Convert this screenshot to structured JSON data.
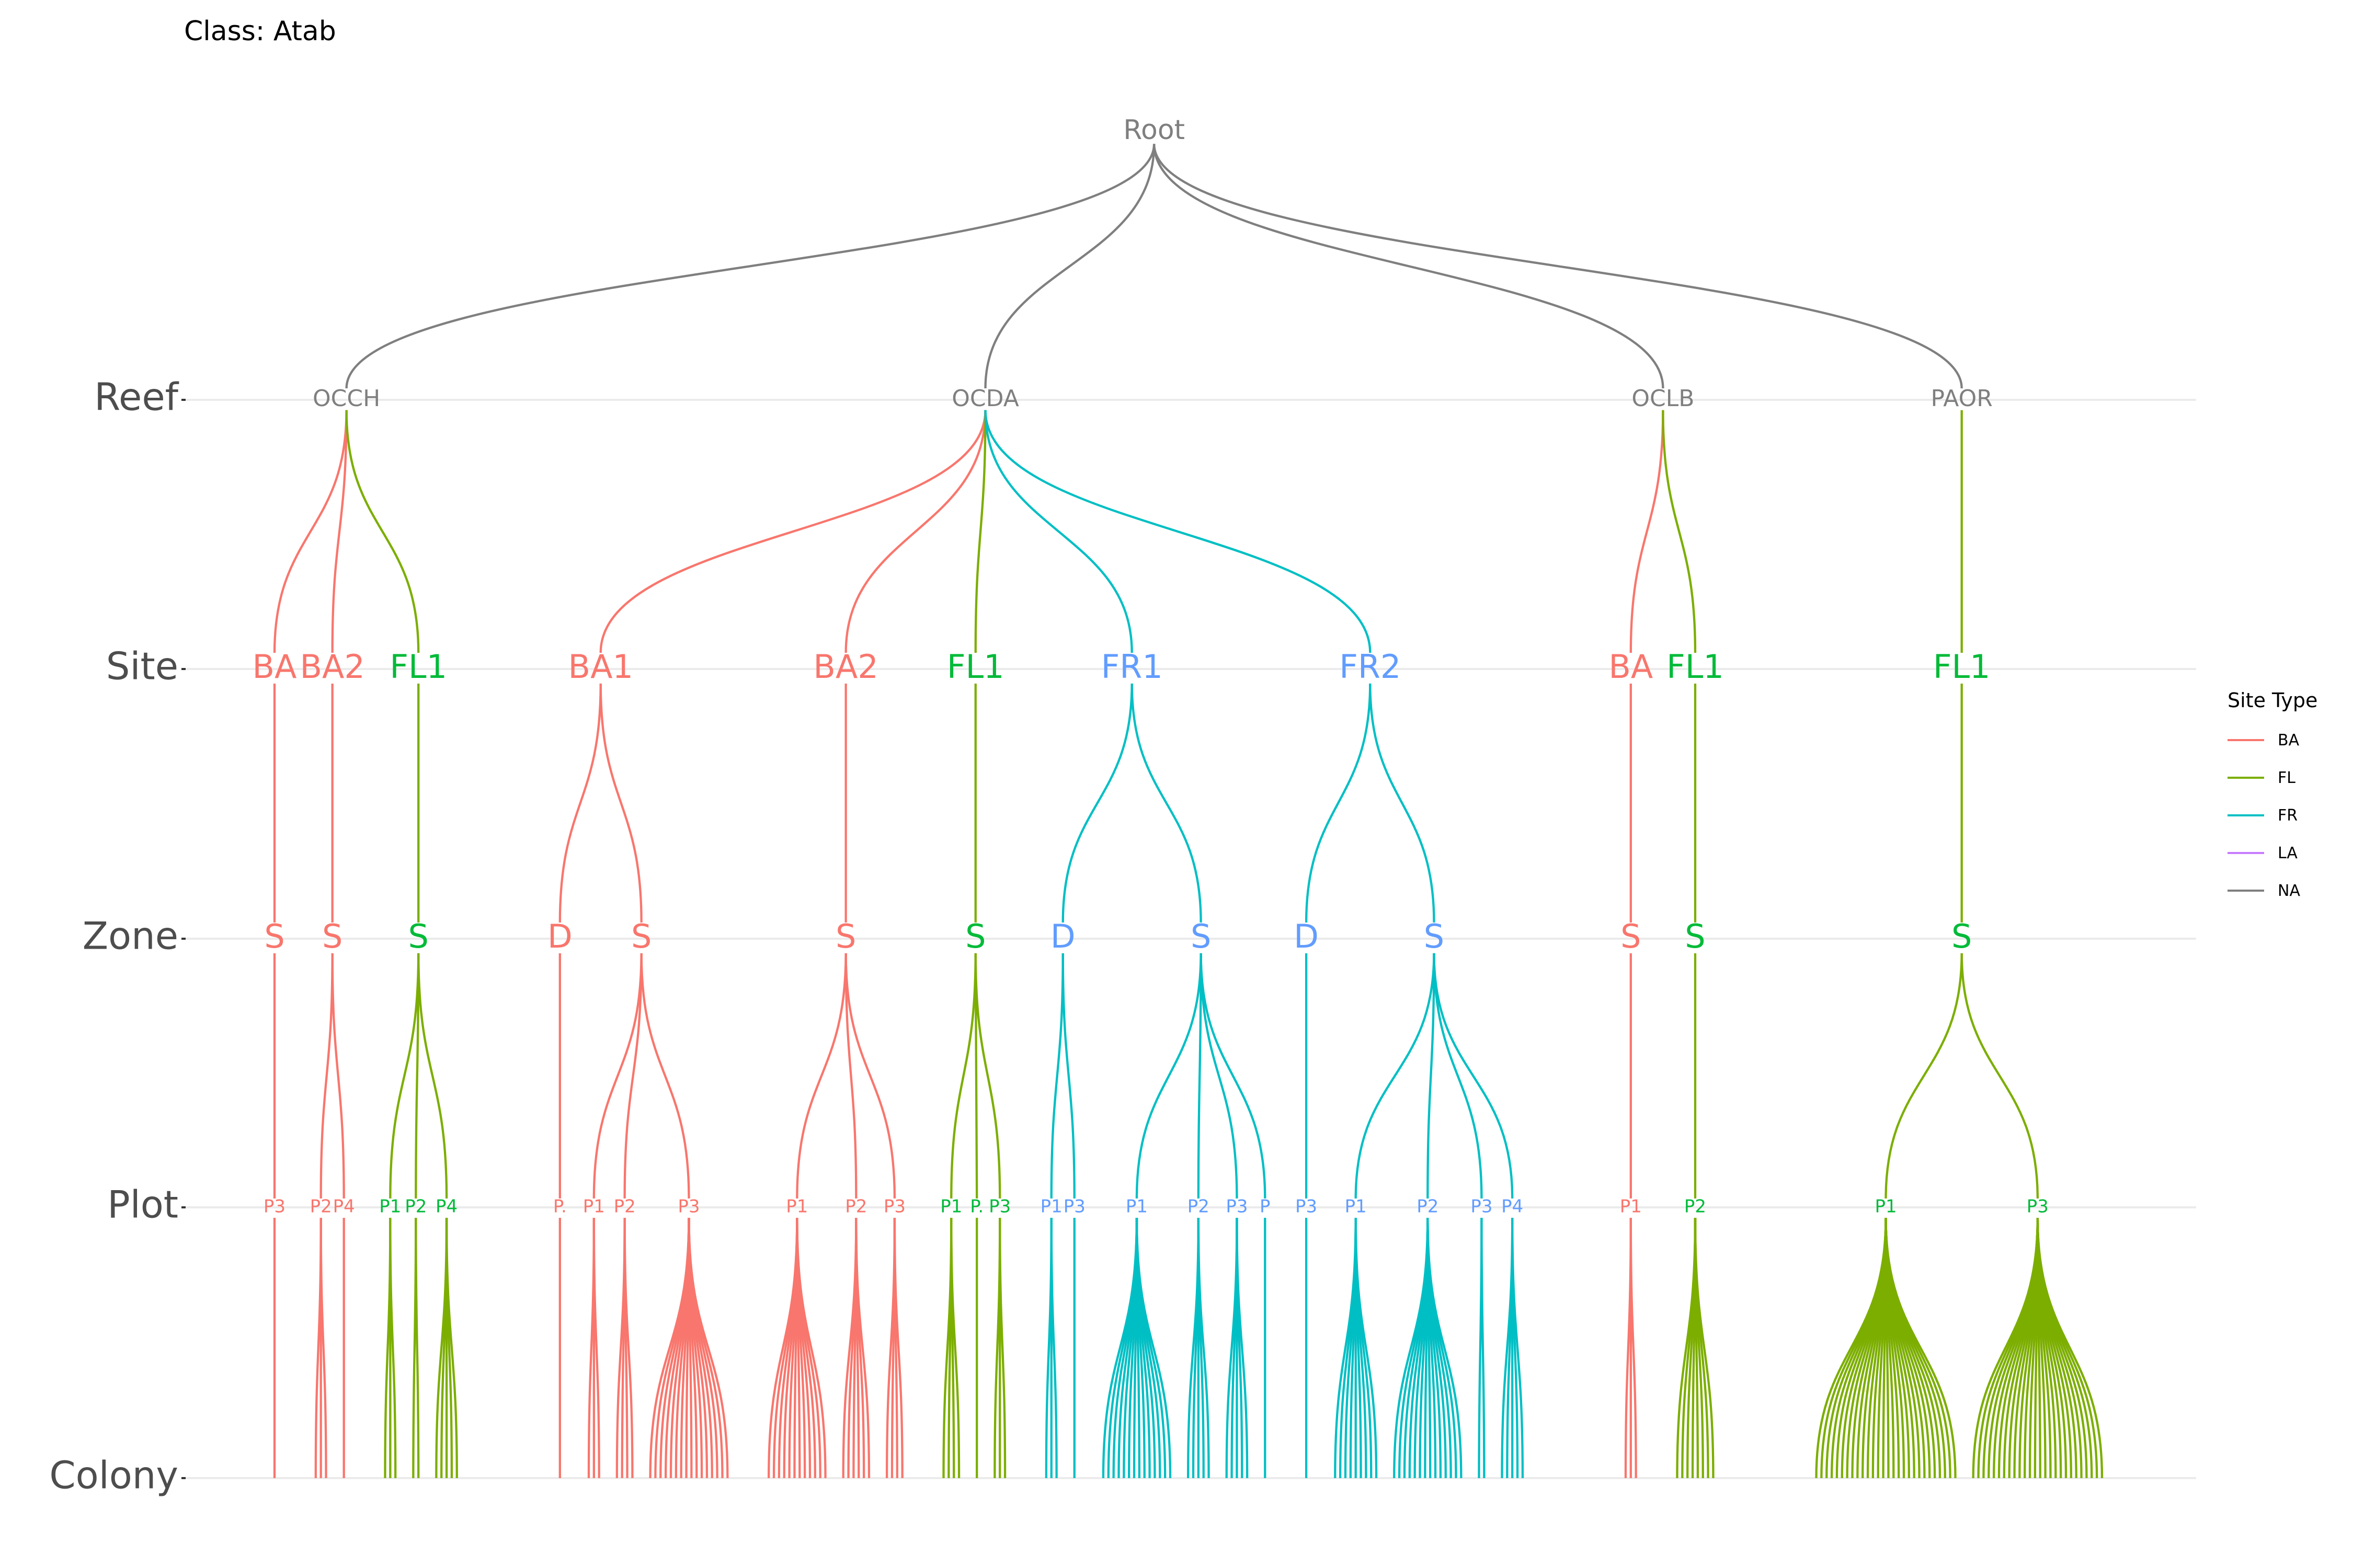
{
  "title": "Class: Atab",
  "levels": [
    "Reef",
    "Site",
    "Zone",
    "Plot",
    "Colony"
  ],
  "legend": {
    "title": "Site Type",
    "items": [
      {
        "label": "BA",
        "color": "#F8766D"
      },
      {
        "label": "FL",
        "color": "#7CAE00"
      },
      {
        "label": "FR",
        "color": "#00BFC4"
      },
      {
        "label": "LA",
        "color": "#C77CFF"
      },
      {
        "label": "NA",
        "color": "#7f7f7f"
      }
    ]
  },
  "edge_colors": {
    "BA": "#F8766D",
    "FL": "#7CAE00",
    "FR": "#00BFC4",
    "NA": "#7f7f7f"
  },
  "label_colors": {
    "BA": "#F8766D",
    "FL": "#00BA38",
    "FR": "#619CFF",
    "NA": "#7f7f7f"
  },
  "tree": {
    "label": "Root",
    "children": [
      {
        "label": "OCCH",
        "children": [
          {
            "label": "BA",
            "type": "BA",
            "children": [
              {
                "label": "S",
                "type": "BA",
                "children": [
                  {
                    "label": "P3",
                    "type": "BA",
                    "colonies": 1
                  }
                ]
              }
            ]
          },
          {
            "label": "BA2",
            "type": "BA",
            "children": [
              {
                "label": "S",
                "type": "BA",
                "children": [
                  {
                    "label": "P2",
                    "type": "BA",
                    "colonies": 3
                  },
                  {
                    "label": "P4",
                    "type": "BA",
                    "colonies": 1
                  }
                ]
              }
            ]
          },
          {
            "label": "FL1",
            "type": "FL",
            "children": [
              {
                "label": "S",
                "type": "FL",
                "children": [
                  {
                    "label": "P1",
                    "type": "FL",
                    "colonies": 3
                  },
                  {
                    "label": "P2",
                    "type": "FL",
                    "colonies": 2
                  },
                  {
                    "label": "P4",
                    "type": "FL",
                    "colonies": 5
                  }
                ]
              }
            ]
          }
        ]
      },
      {
        "label": "OCDA",
        "children": [
          {
            "label": "BA1",
            "type": "BA",
            "children": [
              {
                "label": "D",
                "type": "BA",
                "children": [
                  {
                    "label": "P.",
                    "type": "BA",
                    "colonies": 1
                  }
                ]
              },
              {
                "label": "S",
                "type": "BA",
                "children": [
                  {
                    "label": "P1",
                    "type": "BA",
                    "colonies": 3
                  },
                  {
                    "label": "P2",
                    "type": "BA",
                    "colonies": 4
                  },
                  {
                    "label": "P3",
                    "type": "BA",
                    "colonies": 16
                  }
                ]
              }
            ]
          },
          {
            "label": "BA2",
            "type": "BA",
            "children": [
              {
                "label": "S",
                "type": "BA",
                "children": [
                  {
                    "label": "P1",
                    "type": "BA",
                    "colonies": 12
                  },
                  {
                    "label": "P2",
                    "type": "BA",
                    "colonies": 6
                  },
                  {
                    "label": "P3",
                    "type": "BA",
                    "colonies": 4
                  }
                ]
              }
            ]
          },
          {
            "label": "FL1",
            "type": "FL",
            "children": [
              {
                "label": "S",
                "type": "FL",
                "children": [
                  {
                    "label": "P1",
                    "type": "FL",
                    "colonies": 4
                  },
                  {
                    "label": "P.",
                    "type": "FL",
                    "colonies": 1
                  },
                  {
                    "label": "P3",
                    "type": "FL",
                    "colonies": 3
                  }
                ]
              }
            ]
          },
          {
            "label": "FR1",
            "type": "FR",
            "children": [
              {
                "label": "D",
                "type": "FR",
                "children": [
                  {
                    "label": "P1",
                    "type": "FR",
                    "colonies": 3
                  },
                  {
                    "label": "P3",
                    "type": "FR",
                    "colonies": 1
                  }
                ]
              },
              {
                "label": "S",
                "type": "FR",
                "children": [
                  {
                    "label": "P1",
                    "type": "FR",
                    "colonies": 14
                  },
                  {
                    "label": "P2",
                    "type": "FR",
                    "colonies": 5
                  },
                  {
                    "label": "P3",
                    "type": "FR",
                    "colonies": 5
                  },
                  {
                    "label": "P",
                    "type": "FR",
                    "colonies": 1
                  }
                ]
              }
            ]
          },
          {
            "label": "FR2",
            "type": "FR",
            "children": [
              {
                "label": "D",
                "type": "FR",
                "children": [
                  {
                    "label": "P3",
                    "type": "FR",
                    "colonies": 1
                  }
                ]
              },
              {
                "label": "S",
                "type": "FR",
                "children": [
                  {
                    "label": "P1",
                    "type": "FR",
                    "colonies": 9
                  },
                  {
                    "label": "P2",
                    "type": "FR",
                    "colonies": 14
                  },
                  {
                    "label": "P3",
                    "type": "FR",
                    "colonies": 2
                  },
                  {
                    "label": "P4",
                    "type": "FR",
                    "colonies": 5
                  }
                ]
              }
            ]
          }
        ]
      },
      {
        "label": "OCLB",
        "children": [
          {
            "label": "BA",
            "type": "BA",
            "children": [
              {
                "label": "S",
                "type": "BA",
                "children": [
                  {
                    "label": "P1",
                    "type": "BA",
                    "colonies": 3
                  }
                ]
              }
            ]
          },
          {
            "label": "FL1",
            "type": "FL",
            "children": [
              {
                "label": "S",
                "type": "FL",
                "children": [
                  {
                    "label": "P2",
                    "type": "FL",
                    "colonies": 8
                  }
                ]
              }
            ]
          }
        ]
      },
      {
        "label": "PAOR",
        "children": [
          {
            "label": "FL1",
            "type": "FL",
            "children": [
              {
                "label": "S",
                "type": "FL",
                "children": [
                  {
                    "label": "P1",
                    "type": "FL",
                    "colonies": 28
                  },
                  {
                    "label": "P3",
                    "type": "FL",
                    "colonies": 26
                  }
                ]
              }
            ]
          }
        ]
      }
    ]
  }
}
